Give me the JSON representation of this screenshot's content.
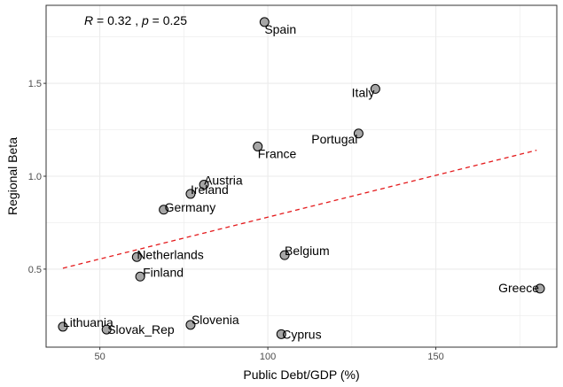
{
  "chart_data": {
    "type": "scatter",
    "title": "",
    "xlabel": "Public Debt/GDP (%)",
    "ylabel": "Regional Beta",
    "xlim": [
      34,
      186
    ],
    "ylim": [
      0.08,
      1.92
    ],
    "xticks": [
      50,
      100,
      150
    ],
    "yticks": [
      0.5,
      1.0,
      1.5
    ],
    "ytick_labels": [
      "0.5",
      "1.0",
      "1.5"
    ],
    "grid": true,
    "annotation": {
      "r_text": "R",
      "r_value": " = 0.32 , ",
      "p_text": "p",
      "p_value": " = 0.25"
    },
    "regression": {
      "style": "dashed",
      "color": "#e41a1c",
      "x": [
        39,
        180
      ],
      "y": [
        0.505,
        1.14
      ]
    },
    "point_color": "#a6a6a6",
    "points": [
      {
        "label": "Spain",
        "x": 99,
        "y": 1.83
      },
      {
        "label": "Italy",
        "x": 132,
        "y": 1.47
      },
      {
        "label": "Portugal",
        "x": 127,
        "y": 1.23
      },
      {
        "label": "France",
        "x": 97,
        "y": 1.16
      },
      {
        "label": "Austria",
        "x": 81,
        "y": 0.955
      },
      {
        "label": "Ireland",
        "x": 77,
        "y": 0.905
      },
      {
        "label": "Germany",
        "x": 69,
        "y": 0.82
      },
      {
        "label": "Netherlands",
        "x": 61,
        "y": 0.565
      },
      {
        "label": "Belgium",
        "x": 105,
        "y": 0.575
      },
      {
        "label": "Finland",
        "x": 62,
        "y": 0.46
      },
      {
        "label": "Greece",
        "x": 181,
        "y": 0.395
      },
      {
        "label": "Slovenia",
        "x": 77,
        "y": 0.2
      },
      {
        "label": "Lithuania",
        "x": 39,
        "y": 0.19
      },
      {
        "label": "Slovak_Rep",
        "x": 52,
        "y": 0.175
      },
      {
        "label": "Cyprus",
        "x": 104,
        "y": 0.15
      }
    ]
  }
}
